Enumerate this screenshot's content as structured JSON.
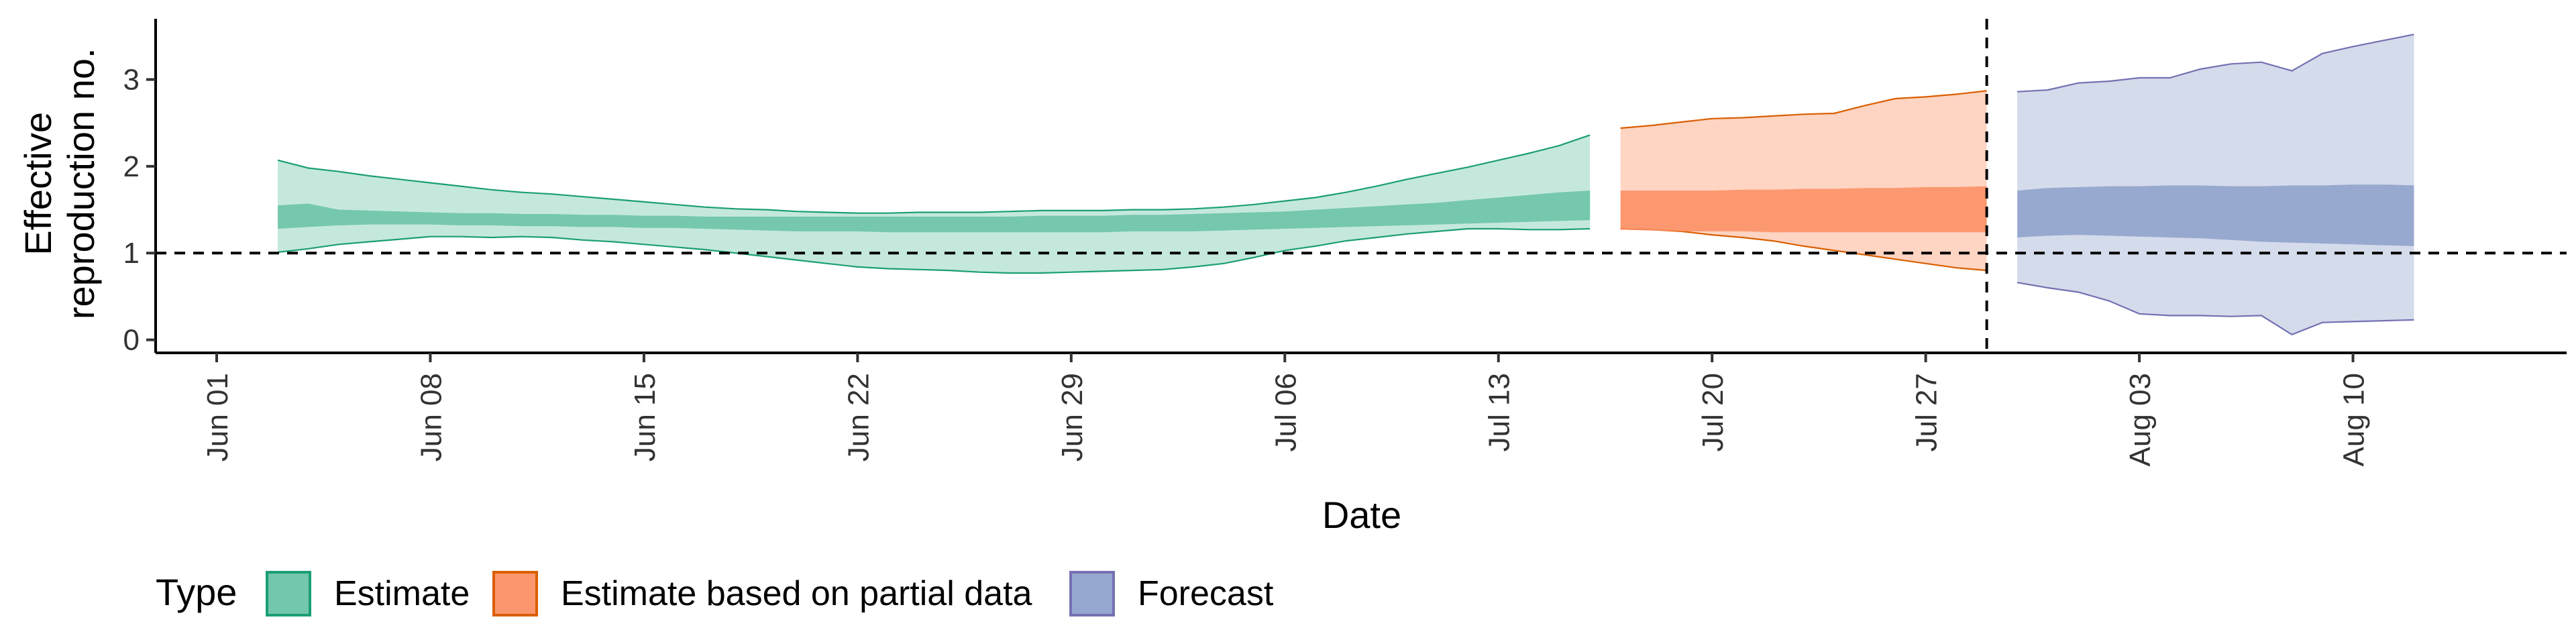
{
  "chart_data": {
    "type": "area",
    "xlabel": "Date",
    "ylabel_lines": [
      "Effective",
      "reproduction no."
    ],
    "xlim": [
      "2020-05-30",
      "2020-08-17"
    ],
    "ylim": [
      -0.15,
      3.7
    ],
    "y_ticks": [
      0,
      1,
      2,
      3
    ],
    "x_ticks": [
      {
        "date": "2020-06-01",
        "label": "Jun 01"
      },
      {
        "date": "2020-06-08",
        "label": "Jun 08"
      },
      {
        "date": "2020-06-15",
        "label": "Jun 15"
      },
      {
        "date": "2020-06-22",
        "label": "Jun 22"
      },
      {
        "date": "2020-06-29",
        "label": "Jun 29"
      },
      {
        "date": "2020-07-06",
        "label": "Jul 06"
      },
      {
        "date": "2020-07-13",
        "label": "Jul 13"
      },
      {
        "date": "2020-07-20",
        "label": "Jul 20"
      },
      {
        "date": "2020-07-27",
        "label": "Jul 27"
      },
      {
        "date": "2020-08-03",
        "label": "Aug 03"
      },
      {
        "date": "2020-08-10",
        "label": "Aug 10"
      }
    ],
    "reference_line_y": 1,
    "reference_line_x": "2020-07-29",
    "grid": false,
    "legend": {
      "position": "bottom-left",
      "title": "Type",
      "entries": [
        "Estimate",
        "Estimate based on partial data",
        "Forecast"
      ]
    },
    "series": [
      {
        "name": "Estimate",
        "fill_color": "#66c2a5",
        "line_color": "#1b9e77",
        "dates": [
          "2020-06-03",
          "2020-06-04",
          "2020-06-05",
          "2020-06-06",
          "2020-06-07",
          "2020-06-08",
          "2020-06-09",
          "2020-06-10",
          "2020-06-11",
          "2020-06-12",
          "2020-06-13",
          "2020-06-14",
          "2020-06-15",
          "2020-06-16",
          "2020-06-17",
          "2020-06-18",
          "2020-06-19",
          "2020-06-20",
          "2020-06-21",
          "2020-06-22",
          "2020-06-23",
          "2020-06-24",
          "2020-06-25",
          "2020-06-26",
          "2020-06-27",
          "2020-06-28",
          "2020-06-29",
          "2020-06-30",
          "2020-07-01",
          "2020-07-02",
          "2020-07-03",
          "2020-07-04",
          "2020-07-05",
          "2020-07-06",
          "2020-07-07",
          "2020-07-08",
          "2020-07-09",
          "2020-07-10",
          "2020-07-11",
          "2020-07-12",
          "2020-07-13",
          "2020-07-14",
          "2020-07-15",
          "2020-07-16"
        ],
        "outer_upper": [
          2.07,
          1.98,
          1.94,
          1.89,
          1.85,
          1.81,
          1.77,
          1.73,
          1.7,
          1.68,
          1.65,
          1.62,
          1.59,
          1.56,
          1.53,
          1.51,
          1.5,
          1.48,
          1.47,
          1.46,
          1.46,
          1.47,
          1.47,
          1.47,
          1.48,
          1.49,
          1.49,
          1.49,
          1.5,
          1.5,
          1.51,
          1.53,
          1.56,
          1.6,
          1.64,
          1.7,
          1.77,
          1.85,
          1.92,
          1.99,
          2.07,
          2.15,
          2.24,
          2.36
        ],
        "inner_upper": [
          1.55,
          1.57,
          1.5,
          1.49,
          1.48,
          1.47,
          1.46,
          1.46,
          1.45,
          1.45,
          1.44,
          1.44,
          1.43,
          1.43,
          1.42,
          1.42,
          1.42,
          1.42,
          1.42,
          1.42,
          1.42,
          1.42,
          1.42,
          1.42,
          1.42,
          1.43,
          1.43,
          1.43,
          1.44,
          1.44,
          1.45,
          1.46,
          1.47,
          1.48,
          1.5,
          1.52,
          1.54,
          1.56,
          1.58,
          1.61,
          1.64,
          1.67,
          1.7,
          1.72
        ],
        "inner_lower": [
          1.28,
          1.3,
          1.32,
          1.33,
          1.33,
          1.33,
          1.32,
          1.32,
          1.31,
          1.31,
          1.3,
          1.3,
          1.29,
          1.29,
          1.28,
          1.27,
          1.26,
          1.25,
          1.25,
          1.25,
          1.24,
          1.24,
          1.24,
          1.24,
          1.24,
          1.24,
          1.24,
          1.24,
          1.25,
          1.25,
          1.25,
          1.26,
          1.27,
          1.28,
          1.29,
          1.3,
          1.31,
          1.32,
          1.33,
          1.34,
          1.35,
          1.36,
          1.37,
          1.38
        ],
        "outer_lower": [
          1.01,
          1.05,
          1.1,
          1.13,
          1.16,
          1.19,
          1.19,
          1.18,
          1.19,
          1.18,
          1.15,
          1.13,
          1.1,
          1.07,
          1.04,
          1.0,
          0.96,
          0.92,
          0.88,
          0.84,
          0.82,
          0.81,
          0.8,
          0.78,
          0.77,
          0.77,
          0.78,
          0.79,
          0.8,
          0.81,
          0.84,
          0.88,
          0.95,
          1.03,
          1.08,
          1.14,
          1.18,
          1.22,
          1.25,
          1.28,
          1.28,
          1.27,
          1.27,
          1.28
        ]
      },
      {
        "name": "Estimate based on partial data",
        "fill_color": "#fc8d62",
        "line_color": "#d95f02",
        "dates": [
          "2020-07-17",
          "2020-07-18",
          "2020-07-19",
          "2020-07-20",
          "2020-07-21",
          "2020-07-22",
          "2020-07-23",
          "2020-07-24",
          "2020-07-25",
          "2020-07-26",
          "2020-07-27",
          "2020-07-28",
          "2020-07-29"
        ],
        "outer_upper": [
          2.44,
          2.47,
          2.51,
          2.55,
          2.56,
          2.58,
          2.6,
          2.61,
          2.7,
          2.78,
          2.8,
          2.83,
          2.87
        ],
        "inner_upper": [
          1.72,
          1.72,
          1.72,
          1.72,
          1.73,
          1.73,
          1.74,
          1.74,
          1.75,
          1.75,
          1.76,
          1.76,
          1.77
        ],
        "inner_lower": [
          1.27,
          1.26,
          1.25,
          1.25,
          1.25,
          1.24,
          1.24,
          1.24,
          1.24,
          1.24,
          1.24,
          1.24,
          1.24
        ],
        "outer_lower": [
          1.28,
          1.27,
          1.25,
          1.21,
          1.18,
          1.14,
          1.08,
          1.03,
          0.98,
          0.93,
          0.88,
          0.83,
          0.8
        ]
      },
      {
        "name": "Forecast",
        "fill_color": "#8da0cb",
        "line_color": "#7570b3",
        "dates": [
          "2020-07-30",
          "2020-07-31",
          "2020-08-01",
          "2020-08-02",
          "2020-08-03",
          "2020-08-04",
          "2020-08-05",
          "2020-08-06",
          "2020-08-07",
          "2020-08-08",
          "2020-08-09",
          "2020-08-10",
          "2020-08-11",
          "2020-08-12"
        ],
        "outer_upper": [
          2.86,
          2.88,
          2.96,
          2.98,
          3.02,
          3.02,
          3.12,
          3.18,
          3.2,
          3.1,
          3.3,
          3.38,
          3.45,
          3.52
        ],
        "inner_upper": [
          1.72,
          1.75,
          1.76,
          1.77,
          1.77,
          1.78,
          1.78,
          1.77,
          1.77,
          1.78,
          1.78,
          1.79,
          1.79,
          1.78
        ],
        "inner_lower": [
          1.18,
          1.2,
          1.21,
          1.2,
          1.19,
          1.18,
          1.17,
          1.15,
          1.13,
          1.12,
          1.11,
          1.1,
          1.09,
          1.08
        ],
        "outer_lower": [
          0.66,
          0.6,
          0.55,
          0.45,
          0.3,
          0.28,
          0.28,
          0.27,
          0.28,
          0.06,
          0.2,
          0.21,
          0.22,
          0.23
        ]
      }
    ]
  }
}
